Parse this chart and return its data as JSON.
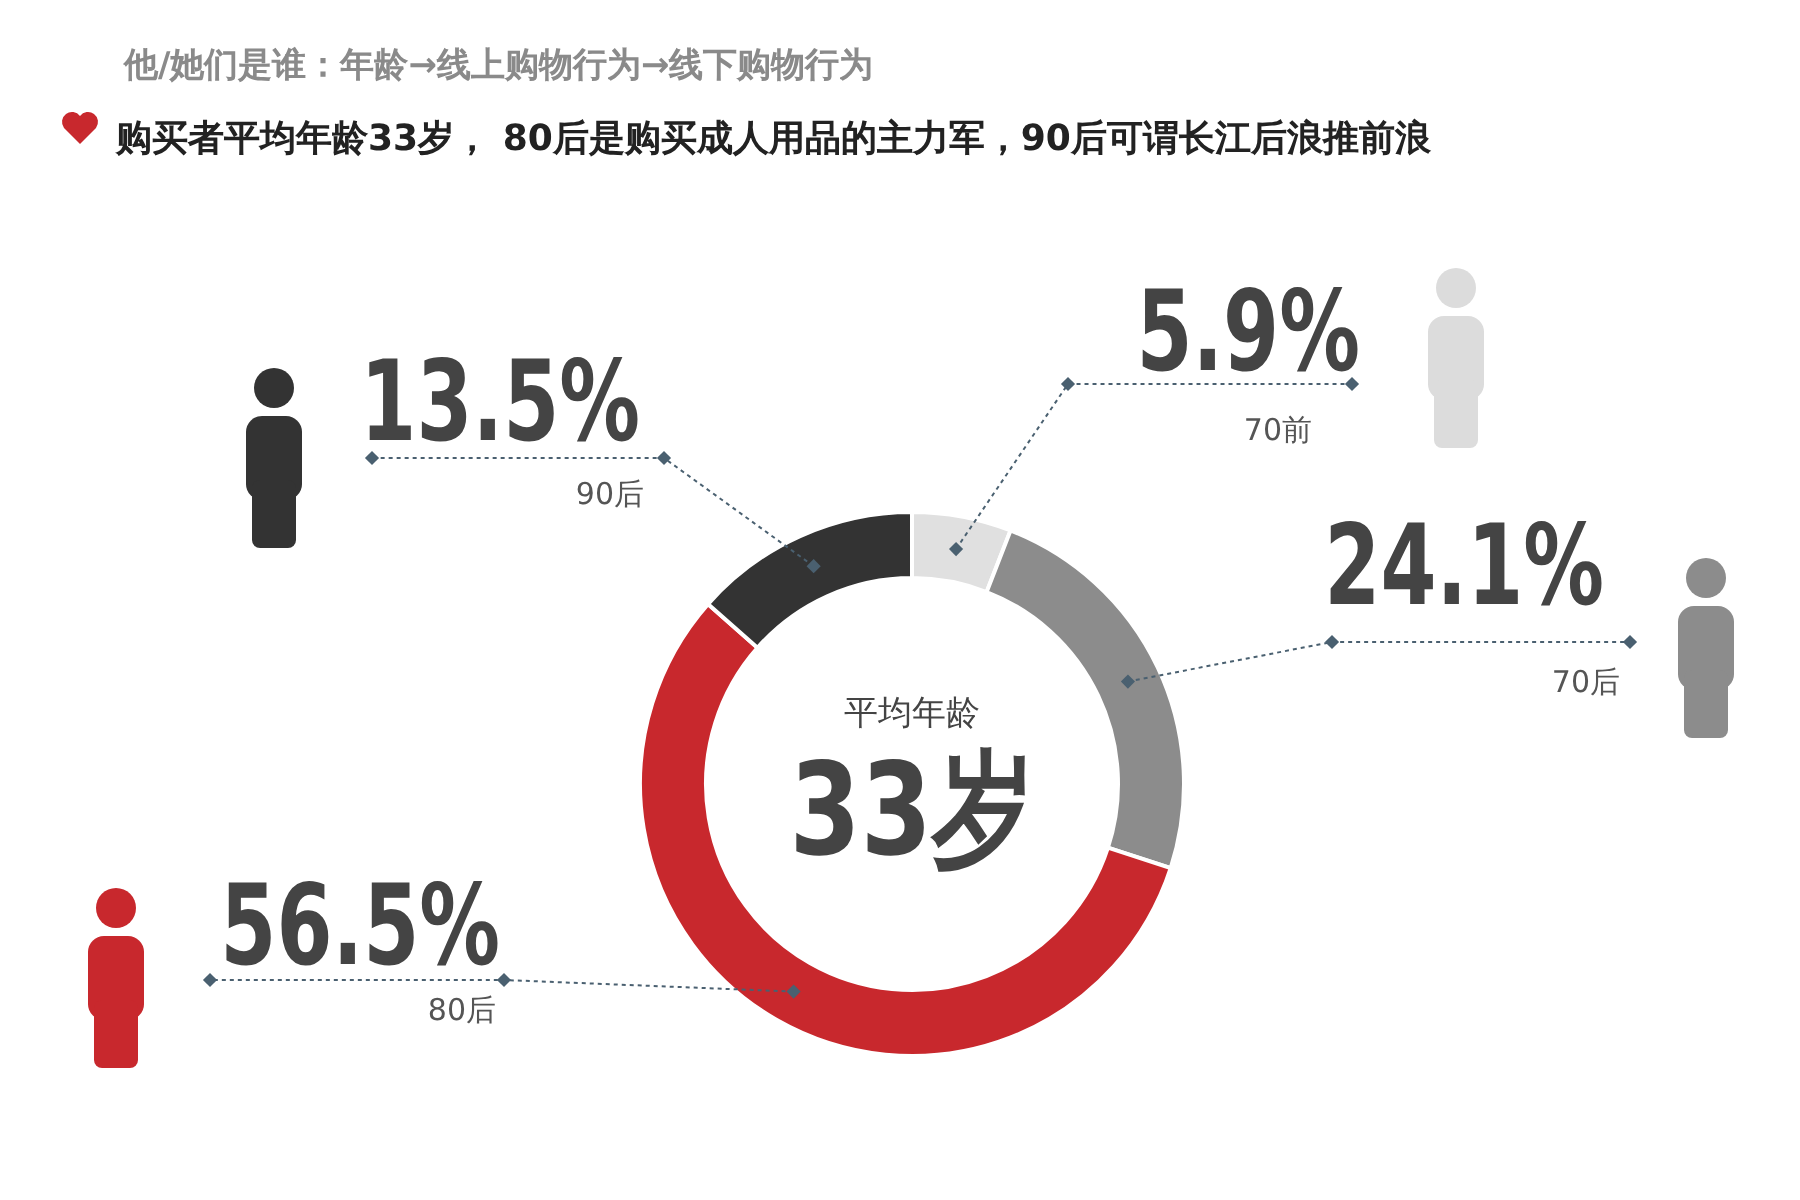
{
  "chart_data": {
    "type": "donut",
    "title": "他/她们是谁：年龄→线上购物行为→线下购物行为",
    "subtitle": "购买者平均年龄33岁， 80后是购买成人用品的主力军，90后可谓长江后浪推前浪",
    "categories": [
      "70前",
      "70后",
      "80后",
      "90后"
    ],
    "values": [
      5.9,
      24.1,
      56.5,
      13.5
    ],
    "colors": [
      "#e0e0e0",
      "#8c8c8c",
      "#c8282d",
      "#333333"
    ],
    "value_labels": [
      "5.9%",
      "24.1%",
      "56.5%",
      "13.5%"
    ],
    "annotations": [
      "平均年龄",
      "33岁"
    ]
  }
}
